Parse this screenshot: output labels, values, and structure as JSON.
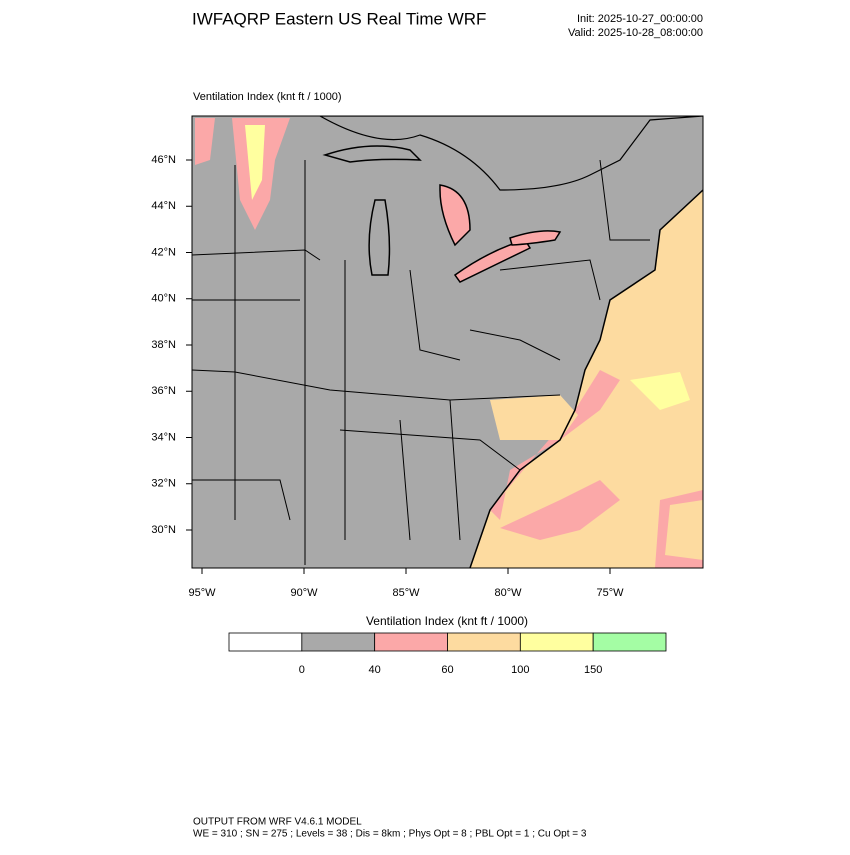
{
  "header": {
    "title": "IWFAQRP Eastern US Real Time WRF",
    "init": "Init: 2025-10-27_00:00:00",
    "valid": "Valid: 2025-10-28_08:00:00"
  },
  "map": {
    "label": "Ventilation Index   (knt ft / 1000)",
    "lat_labels": [
      "46°N",
      "44°N",
      "42°N",
      "40°N",
      "38°N",
      "36°N",
      "34°N",
      "32°N",
      "30°N"
    ],
    "lon_labels": [
      "95°W",
      "90°W",
      "85°W",
      "80°W",
      "75°W"
    ]
  },
  "colorbar": {
    "title": "Ventilation Index  (knt ft / 1000)",
    "colors": [
      "#ffffff",
      "#a9a9a9",
      "#fba8a8",
      "#fddba0",
      "#ffff9f",
      "#a4fda4"
    ],
    "ticks": [
      0,
      40,
      60,
      100,
      150
    ]
  },
  "footer": {
    "line1": "OUTPUT FROM WRF V4.6.1 MODEL",
    "line2": "WE = 310 ; SN = 275 ; Levels = 38 ; Dis = 8km ; Phys Opt = 8 ; PBL Opt = 1 ; Cu Opt = 3"
  }
}
